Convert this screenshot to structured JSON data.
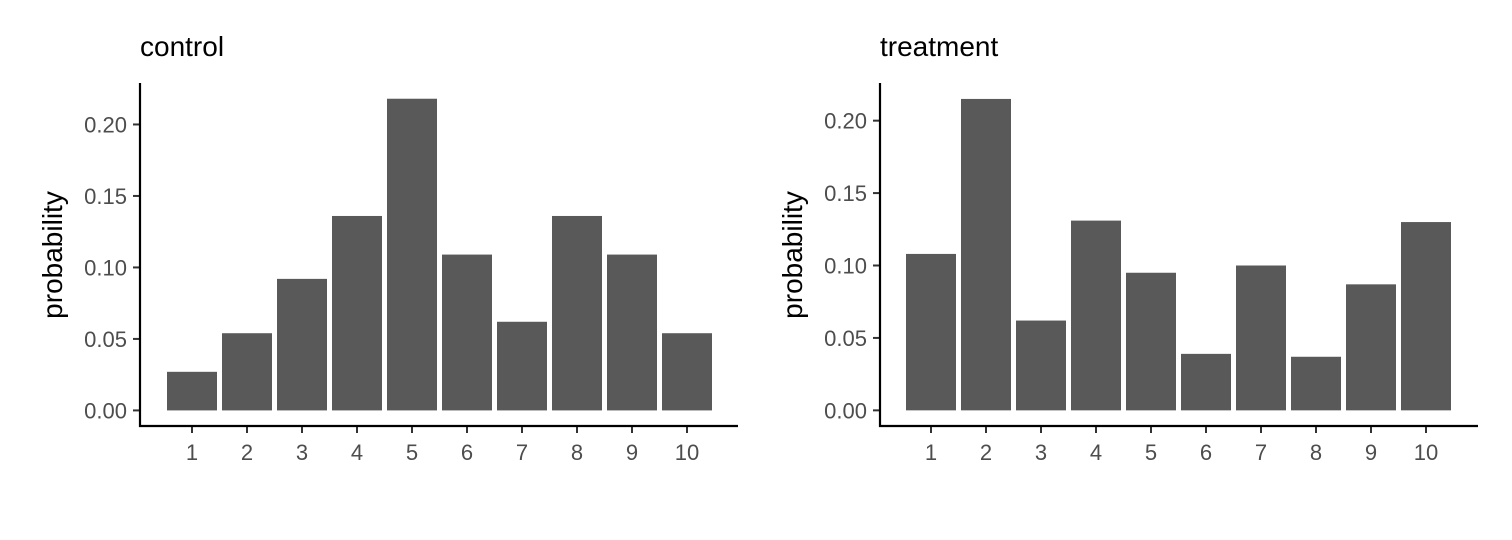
{
  "chart_data": [
    {
      "type": "bar",
      "title": "control",
      "xlabel": "",
      "ylabel": "probability",
      "categories": [
        "1",
        "2",
        "3",
        "4",
        "5",
        "6",
        "7",
        "8",
        "9",
        "10"
      ],
      "values": [
        0.027,
        0.054,
        0.092,
        0.136,
        0.218,
        0.109,
        0.062,
        0.136,
        0.109,
        0.054
      ],
      "yticks": [
        "0.00",
        "0.05",
        "0.10",
        "0.15",
        "0.20"
      ],
      "ytick_values": [
        0,
        0.05,
        0.1,
        0.15,
        0.2
      ],
      "ylim": [
        -0.0109,
        0.229
      ],
      "bar_color": "#595959"
    },
    {
      "type": "bar",
      "title": "treatment",
      "xlabel": "",
      "ylabel": "probability",
      "categories": [
        "1",
        "2",
        "3",
        "4",
        "5",
        "6",
        "7",
        "8",
        "9",
        "10"
      ],
      "values": [
        0.108,
        0.215,
        0.062,
        0.131,
        0.095,
        0.039,
        0.1,
        0.037,
        0.087,
        0.13
      ],
      "yticks": [
        "0.00",
        "0.05",
        "0.10",
        "0.15",
        "0.20"
      ],
      "ytick_values": [
        0,
        0.05,
        0.1,
        0.15,
        0.2
      ],
      "ylim": [
        -0.0108,
        0.226
      ],
      "bar_color": "#595959"
    }
  ]
}
